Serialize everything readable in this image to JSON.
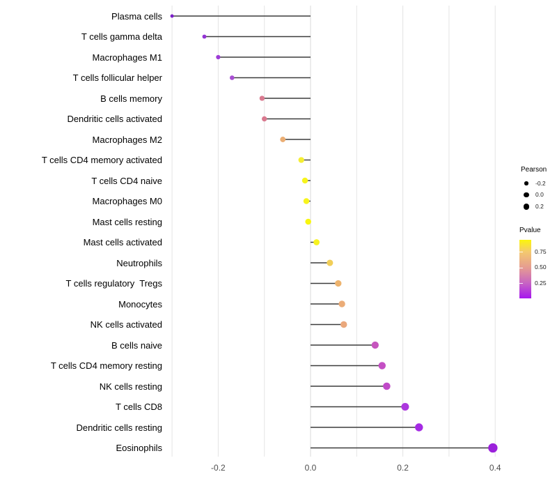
{
  "chart_data": {
    "type": "lollipop",
    "title": "",
    "xlabel": "",
    "ylabel": "",
    "orientation": "horizontal",
    "baseline": 0,
    "xlim": [
      -0.31,
      0.43
    ],
    "x_gridlines": [
      -0.3,
      -0.2,
      -0.1,
      0.0,
      0.1,
      0.2,
      0.3,
      0.4
    ],
    "x_ticks": [
      {
        "value": -0.2,
        "label": "-0.2"
      },
      {
        "value": 0.0,
        "label": "0.0"
      },
      {
        "value": 0.2,
        "label": "0.2"
      },
      {
        "value": 0.4,
        "label": "0.4"
      }
    ],
    "grid": "vertical-only",
    "legend_position": "right",
    "size_encoding": "Pearson correlation",
    "color_encoding": "Pvalue (yellow = high, purple = low)",
    "rows": [
      {
        "label": "Plasma cells",
        "pearson": -0.3,
        "color": "#7B1FC8"
      },
      {
        "label": "T cells gamma delta",
        "pearson": -0.23,
        "color": "#9334D4"
      },
      {
        "label": "Macrophages M1",
        "pearson": -0.2,
        "color": "#9D3CD6"
      },
      {
        "label": "T cells follicular helper",
        "pearson": -0.17,
        "color": "#A84ED2"
      },
      {
        "label": "B cells memory",
        "pearson": -0.105,
        "color": "#D9798F"
      },
      {
        "label": "Dendritic cells activated",
        "pearson": -0.1,
        "color": "#D9798F"
      },
      {
        "label": "Macrophages M2",
        "pearson": -0.06,
        "color": "#EBAE74"
      },
      {
        "label": "T cells CD4 memory activated",
        "pearson": -0.02,
        "color": "#F5EE33"
      },
      {
        "label": "T cells CD4 naive",
        "pearson": -0.012,
        "color": "#F7F41D"
      },
      {
        "label": "Macrophages M0",
        "pearson": -0.009,
        "color": "#F7F41D"
      },
      {
        "label": "Mast cells resting",
        "pearson": -0.005,
        "color": "#F8F60F"
      },
      {
        "label": "Mast cells activated",
        "pearson": 0.013,
        "color": "#F7F31F"
      },
      {
        "label": "Neutrophils",
        "pearson": 0.042,
        "color": "#F1CE58"
      },
      {
        "label": "T cells regulatory  Tregs",
        "pearson": 0.06,
        "color": "#EDB36E"
      },
      {
        "label": "Monocytes",
        "pearson": 0.068,
        "color": "#EBAC77"
      },
      {
        "label": "NK cells activated",
        "pearson": 0.072,
        "color": "#EAA87C"
      },
      {
        "label": "B cells naive",
        "pearson": 0.14,
        "color": "#C655BE"
      },
      {
        "label": "T cells CD4 memory resting",
        "pearson": 0.155,
        "color": "#C44FC4"
      },
      {
        "label": "NK cells resting",
        "pearson": 0.165,
        "color": "#C04AC8"
      },
      {
        "label": "T cells CD8",
        "pearson": 0.205,
        "color": "#AC37DE"
      },
      {
        "label": "Dendritic cells resting",
        "pearson": 0.235,
        "color": "#A52BE4"
      },
      {
        "label": "Eosinophils",
        "pearson": 0.395,
        "color": "#9B21DB"
      }
    ]
  },
  "legend": {
    "size": {
      "title": "Pearson",
      "items": [
        {
          "label": "-0.2",
          "radius": 2.7
        },
        {
          "label": "0.0",
          "radius": 3.7
        },
        {
          "label": "0.2",
          "radius": 4.4
        }
      ]
    },
    "color": {
      "title": "Pvalue",
      "tick_labels": [
        "0.75",
        "0.50",
        "0.25"
      ],
      "gradient_stops": [
        "#FCF60A",
        "#F4CA6E",
        "#E59B92",
        "#C763C3",
        "#A616EE"
      ]
    }
  },
  "colors": {
    "background": "#FFFFFF",
    "stem": "#3C3C3C",
    "gridline": "#E4E4E4",
    "zero_gridline": "#D9D9D9",
    "axis_text": "#4D4D4D",
    "category_text": "#000000",
    "legend_dot": "#000000"
  }
}
